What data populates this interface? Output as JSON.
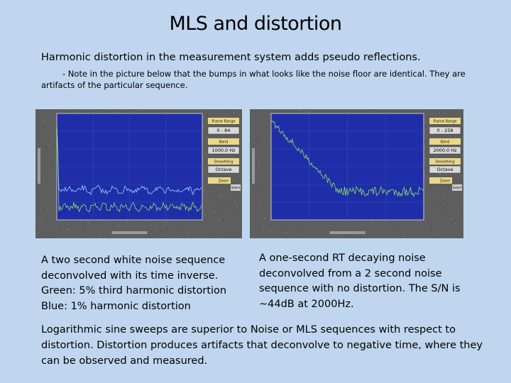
{
  "title": "MLS and distortion",
  "intro": "Harmonic distortion in the measurement system adds pseudo reflections.",
  "note": "- Note in the picture below that the bumps in what looks like the noise floor are identical. They are artifacts of the particular sequence.",
  "screenshots": [
    {
      "controls": {
        "frame_label": "Frame Range",
        "frame_value": "0 - 84",
        "band_label": "Band",
        "band_value": "1000.0 Hz",
        "smoothing_label": "Smoothing",
        "smoothing_value": "Octave",
        "zoom_label": "Zoom",
        "select": "Select"
      }
    },
    {
      "controls": {
        "frame_label": "Frame Range",
        "frame_value": "0 - 258",
        "band_label": "Band",
        "band_value": "2000.0 Hz",
        "smoothing_label": "Smoothing",
        "smoothing_value": "Octave",
        "zoom_label": "Zoom",
        "select": "Select"
      }
    }
  ],
  "captions": [
    {
      "lines": [
        "A two second white noise sequence",
        "deconvolved with its time inverse.",
        "Green: 5% third harmonic distortion",
        "Blue: 1% harmonic distortion"
      ]
    },
    {
      "lines": [
        "A one-second RT decaying noise",
        "deconvolved from a 2 second noise",
        "sequence with no distortion. The S/N is",
        "~44dB at 2000Hz."
      ]
    }
  ],
  "conclusion": "Logarithmic sine sweeps are superior to Noise or MLS sequences with respect to distortion. Distortion produces artifacts that deconvolve to negative time, where they can be observed and measured."
}
